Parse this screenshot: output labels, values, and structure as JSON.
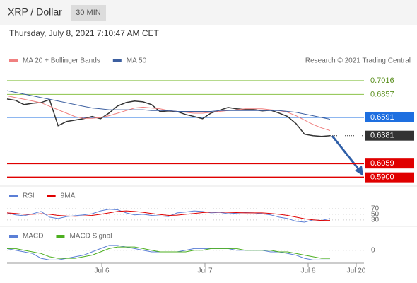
{
  "chart_data": [
    {
      "type": "line",
      "title": "XRP / Dollar",
      "interval": "30 MIN",
      "subtitle": "Thursday, July 8, 2021 7:10:47 AM CET",
      "credit": "Research © 2021 Trading Central",
      "ylim": [
        0.584,
        0.717
      ],
      "series": [
        {
          "name": "Price",
          "color": "#333333",
          "values": [
            0.6804,
            0.6788,
            0.6739,
            0.6755,
            0.6763,
            0.6796,
            0.6495,
            0.6544,
            0.656,
            0.6576,
            0.6601,
            0.6576,
            0.6641,
            0.6723,
            0.6763,
            0.678,
            0.6771,
            0.6739,
            0.6658,
            0.6666,
            0.6658,
            0.6625,
            0.6601,
            0.6576,
            0.6641,
            0.6674,
            0.6706,
            0.669,
            0.6682,
            0.6682,
            0.6666,
            0.6674,
            0.6641,
            0.6601,
            0.6519,
            0.6397,
            0.6381,
            0.6372,
            0.6381
          ]
        },
        {
          "name": "MA 20 + Bollinger Bands",
          "color": "#f08080",
          "values": [
            0.684,
            0.682,
            0.68,
            0.678,
            0.676,
            0.672,
            0.668,
            0.664,
            0.66,
            0.658,
            0.658,
            0.659,
            0.661,
            0.664,
            0.667,
            0.67,
            0.671,
            0.67,
            0.669,
            0.667,
            0.666,
            0.665,
            0.664,
            0.664,
            0.665,
            0.666,
            0.667,
            0.668,
            0.669,
            0.669,
            0.669,
            0.668,
            0.667,
            0.665,
            0.661,
            0.656,
            0.651,
            0.647,
            0.644
          ]
        },
        {
          "name": "MA 50",
          "color": "#3c5fa0",
          "values": [
            0.69,
            0.688,
            0.686,
            0.684,
            0.682,
            0.68,
            0.678,
            0.676,
            0.674,
            0.672,
            0.67,
            0.669,
            0.668,
            0.668,
            0.668,
            0.668,
            0.668,
            0.667,
            0.667,
            0.667,
            0.666,
            0.666,
            0.666,
            0.666,
            0.666,
            0.667,
            0.667,
            0.667,
            0.667,
            0.667,
            0.667,
            0.667,
            0.667,
            0.666,
            0.665,
            0.663,
            0.661,
            0.659,
            0.657
          ]
        }
      ],
      "levels": [
        {
          "value": 0.7016,
          "label": "0.7016",
          "color": "#8bc34a"
        },
        {
          "value": 0.6857,
          "label": "0.6857",
          "color": "#8bc34a"
        },
        {
          "value": 0.6591,
          "label": "0.6591",
          "color": "#1e6fe0"
        },
        {
          "value": 0.6381,
          "label": "0.6381",
          "color": "#333333"
        },
        {
          "value": 0.6059,
          "label": "0.6059",
          "color": "#e00000"
        },
        {
          "value": 0.59,
          "label": "0.5900",
          "color": "#e00000"
        }
      ]
    },
    {
      "type": "line",
      "ylim": [
        12,
        95
      ],
      "yticks": [
        70,
        50,
        30
      ],
      "series": [
        {
          "name": "RSI",
          "color": "#5b7fd6",
          "values": [
            55,
            48,
            45,
            52,
            60,
            40,
            35,
            42,
            45,
            48,
            52,
            62,
            68,
            66,
            55,
            48,
            50,
            46,
            44,
            42,
            55,
            58,
            62,
            60,
            55,
            57,
            52,
            54,
            56,
            55,
            52,
            48,
            40,
            35,
            25,
            22,
            30,
            28,
            35
          ]
        },
        {
          "name": "9MA",
          "color": "#e00000",
          "values": [
            55,
            53,
            50,
            50,
            52,
            50,
            46,
            44,
            43,
            44,
            46,
            50,
            55,
            60,
            62,
            60,
            57,
            53,
            49,
            46,
            47,
            50,
            53,
            56,
            58,
            58,
            57,
            56,
            55,
            55,
            55,
            53,
            50,
            46,
            40,
            34,
            30,
            28,
            28
          ]
        }
      ]
    },
    {
      "type": "line",
      "ylim": [
        -0.008,
        0.006
      ],
      "yticks": [
        0
      ],
      "series": [
        {
          "name": "MACD",
          "color": "#5b7fd6",
          "values": [
            0.001,
            0.0,
            -0.001,
            -0.002,
            -0.005,
            -0.006,
            -0.006,
            -0.005,
            -0.004,
            -0.003,
            -0.001,
            0.001,
            0.003,
            0.003,
            0.002,
            0.001,
            0.0,
            -0.001,
            -0.001,
            -0.001,
            -0.001,
            0.0,
            0.001,
            0.001,
            0.001,
            0.001,
            0.001,
            0.0,
            0.0,
            0.0,
            0.0,
            -0.001,
            -0.001,
            -0.002,
            -0.003,
            -0.005,
            -0.006,
            -0.006,
            -0.006
          ]
        },
        {
          "name": "MACD Signal",
          "color": "#4caf20",
          "values": [
            0.001,
            0.001,
            0.0,
            -0.001,
            -0.002,
            -0.004,
            -0.005,
            -0.005,
            -0.005,
            -0.004,
            -0.003,
            -0.001,
            0.001,
            0.002,
            0.002,
            0.002,
            0.001,
            0.0,
            -0.001,
            -0.001,
            -0.001,
            -0.001,
            0.0,
            0.0,
            0.001,
            0.001,
            0.001,
            0.001,
            0.0,
            0.0,
            0.0,
            0.0,
            -0.001,
            -0.001,
            -0.002,
            -0.003,
            -0.004,
            -0.005,
            -0.005
          ]
        }
      ],
      "x_labels": [
        "Jul 6",
        "Jul 7",
        "Jul 8",
        "Jul 20"
      ]
    }
  ]
}
